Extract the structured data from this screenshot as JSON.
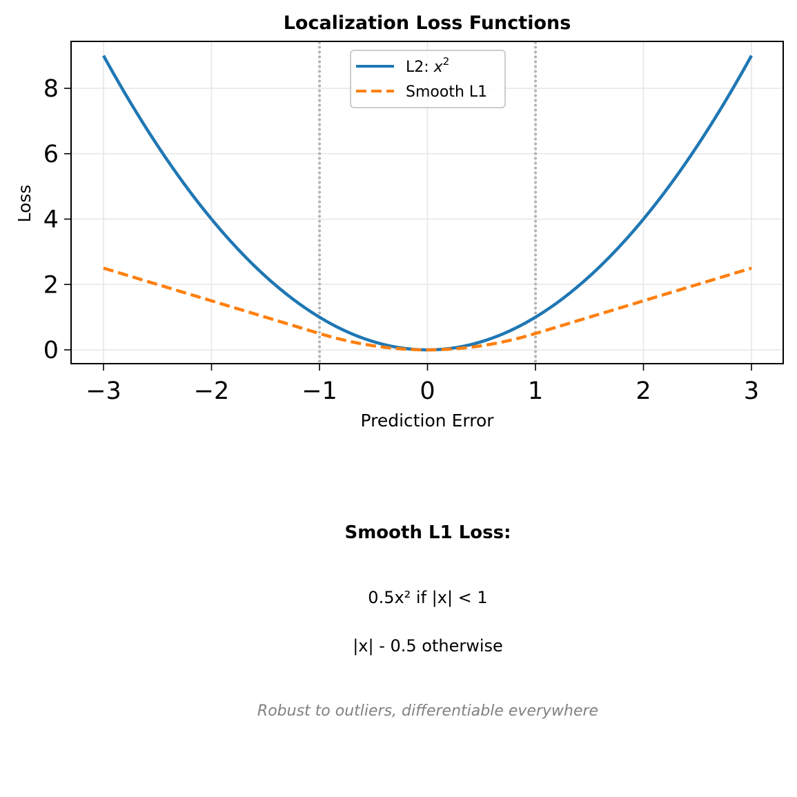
{
  "chart_data": {
    "type": "line",
    "title": "Localization Loss Functions",
    "xlabel": "Prediction Error",
    "ylabel": "Loss",
    "xlim": [
      -3.3,
      3.3
    ],
    "ylim": [
      -0.45,
      9.45
    ],
    "xticks": [
      -3,
      -2,
      -1,
      0,
      1,
      2,
      3
    ],
    "xtick_labels": [
      "−3",
      "−2",
      "−1",
      "0",
      "1",
      "2",
      "3"
    ],
    "yticks": [
      0,
      2,
      4,
      6,
      8
    ],
    "ytick_labels": [
      "0",
      "2",
      "4",
      "6",
      "8"
    ],
    "grid": true,
    "legend_position": "top-center",
    "x_range": [
      -3,
      3
    ],
    "series": [
      {
        "name": "L2: x²",
        "legend_label": "L2: ",
        "legend_math": "x",
        "legend_sup": "2",
        "formula": "x^2",
        "color": "#1f77b4",
        "style": "solid",
        "x": [
          -3,
          -2.5,
          -2,
          -1.5,
          -1,
          -0.5,
          0,
          0.5,
          1,
          1.5,
          2,
          2.5,
          3
        ],
        "y": [
          9,
          6.25,
          4,
          2.25,
          1,
          0.25,
          0,
          0.25,
          1,
          2.25,
          4,
          6.25,
          9
        ]
      },
      {
        "name": "Smooth L1",
        "legend_label": "Smooth L1",
        "formula": "smooth_l1",
        "color": "#ff7f0e",
        "style": "dashed",
        "x": [
          -3,
          -2.5,
          -2,
          -1.5,
          -1,
          -0.5,
          0,
          0.5,
          1,
          1.5,
          2,
          2.5,
          3
        ],
        "y": [
          2.5,
          2.0,
          1.5,
          1.0,
          0.5,
          0.125,
          0,
          0.125,
          0.5,
          1.0,
          1.5,
          2.0,
          2.5
        ]
      }
    ],
    "vlines": [
      {
        "x": -1,
        "color": "#a9a9a9",
        "style": "dotted"
      },
      {
        "x": 1,
        "color": "#a9a9a9",
        "style": "dotted"
      }
    ]
  },
  "annotation": {
    "title": "Smooth L1 Loss:",
    "line1": "0.5x² if |x| < 1",
    "line2": "|x| - 0.5 otherwise",
    "note": "Robust to outliers, differentiable everywhere"
  }
}
